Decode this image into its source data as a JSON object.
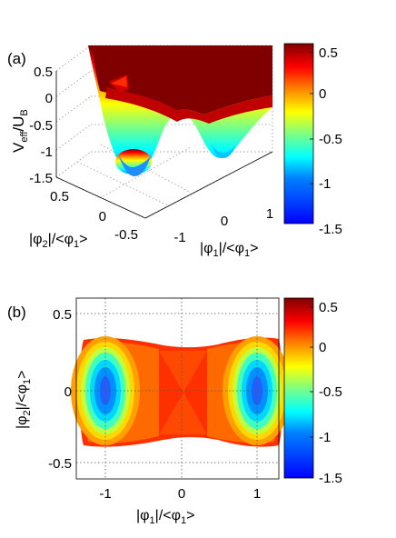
{
  "panel_labels": [
    "(a)",
    "(b)"
  ],
  "colors": {
    "colormap": [
      "#00008f",
      "#0000ff",
      "#0080ff",
      "#00ffff",
      "#80ff80",
      "#ffff00",
      "#ff8000",
      "#ff0000",
      "#800000"
    ]
  },
  "chart_data": [
    {
      "type": "surface",
      "panel": "(a)",
      "title": "",
      "zlabel": {
        "main": "V",
        "sub": "eff",
        "tail": "/U",
        "sub2": "B"
      },
      "xlabel": {
        "pre": "|φ",
        "sub": "1",
        "mid": "|/<φ",
        "sub2": "1",
        "post": ">"
      },
      "ylabel": {
        "pre": "|φ",
        "sub": "2",
        "mid": "|/<φ",
        "sub2": "1",
        "post": ">"
      },
      "x_ticks": [
        "-1",
        "0",
        "1"
      ],
      "y_ticks": [
        "0.5",
        "0",
        "-0.5"
      ],
      "z_ticks": [
        "0.5",
        "0",
        "-0.5",
        "-1",
        "-1.5"
      ],
      "xlim": [
        -1.3,
        1.3
      ],
      "ylim": [
        -0.6,
        0.6
      ],
      "zlim": [
        -1.5,
        0.5
      ],
      "minima": [
        {
          "x": -1,
          "y": 0,
          "z": -1.45
        },
        {
          "x": 1,
          "y": 0,
          "z": -1.1
        }
      ],
      "colorbar": {
        "ticks": [
          "0.5",
          "0",
          "-0.5",
          "-1",
          "-1.5"
        ],
        "range": [
          -1.5,
          0.5
        ]
      },
      "grid": true
    },
    {
      "type": "heatmap",
      "panel": "(b)",
      "title": "",
      "xlabel": {
        "pre": "|φ",
        "sub": "1",
        "mid": "|/<φ",
        "sub2": "1",
        "post": ">"
      },
      "ylabel": {
        "pre": "|φ",
        "sub": "2",
        "mid": "|/<φ",
        "sub2": "1",
        "post": ">"
      },
      "x_ticks": [
        "-1",
        "0",
        "1"
      ],
      "y_ticks": [
        "0.5",
        "0",
        "-0.5"
      ],
      "xlim": [
        -1.3,
        1.3
      ],
      "ylim": [
        -0.6,
        0.6
      ],
      "minima": [
        {
          "x": -1,
          "y": 0,
          "z": -1.5
        },
        {
          "x": 1,
          "y": 0,
          "z": -1.5
        }
      ],
      "colorbar": {
        "ticks": [
          "0.5",
          "0",
          "-0.5",
          "-1",
          "-1.5"
        ],
        "range": [
          -1.5,
          0.5
        ]
      },
      "grid": "dotted"
    }
  ]
}
